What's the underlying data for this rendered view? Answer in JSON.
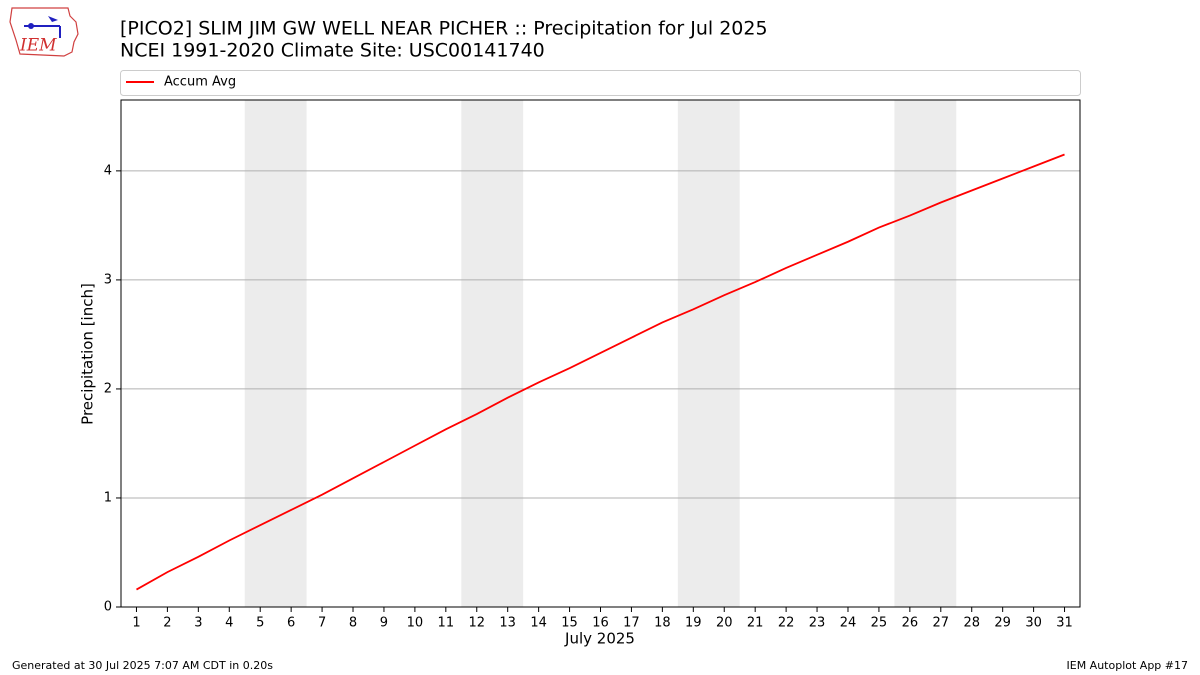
{
  "chart_data": {
    "type": "line",
    "logo_text": "IEM",
    "title": "[PICO2] SLIM JIM GW WELL NEAR PICHER :: Precipitation for Jul 2025",
    "subtitle": "NCEI 1991-2020 Climate Site: USC00141740",
    "xlabel": "July 2025",
    "ylabel": "Precipitation [inch]",
    "x": [
      1,
      2,
      3,
      4,
      5,
      6,
      7,
      8,
      9,
      10,
      11,
      12,
      13,
      14,
      15,
      16,
      17,
      18,
      19,
      20,
      21,
      22,
      23,
      24,
      25,
      26,
      27,
      28,
      29,
      30,
      31
    ],
    "series": [
      {
        "name": "Accum Avg",
        "color": "#ff0000",
        "values": [
          0.16,
          0.32,
          0.46,
          0.61,
          0.75,
          0.89,
          1.03,
          1.18,
          1.33,
          1.48,
          1.63,
          1.77,
          1.92,
          2.06,
          2.19,
          2.33,
          2.47,
          2.61,
          2.73,
          2.86,
          2.98,
          3.11,
          3.23,
          3.35,
          3.48,
          3.59,
          3.71,
          3.82,
          3.93,
          4.04,
          4.15
        ]
      }
    ],
    "xlim": [
      0.5,
      31.5
    ],
    "xticks": [
      1,
      2,
      3,
      4,
      5,
      6,
      7,
      8,
      9,
      10,
      11,
      12,
      13,
      14,
      15,
      16,
      17,
      18,
      19,
      20,
      21,
      22,
      23,
      24,
      25,
      26,
      27,
      28,
      29,
      30,
      31
    ],
    "ylim": [
      0,
      4.65
    ],
    "yticks": [
      0,
      1,
      2,
      3,
      4
    ],
    "grid": true,
    "shaded_spans": [
      [
        4.5,
        6.5
      ],
      [
        11.5,
        13.5
      ],
      [
        18.5,
        20.5
      ],
      [
        25.5,
        27.5
      ]
    ],
    "shade_color": "#ececec",
    "footer_left": "Generated at 30 Jul 2025 7:07 AM CDT in 0.20s",
    "footer_right": "IEM Autoplot App #17"
  }
}
